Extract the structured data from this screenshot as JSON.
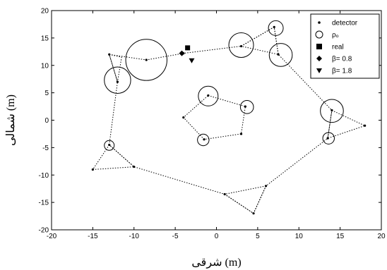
{
  "chart_data": {
    "type": "scatter",
    "xlabel": "شرقی (m)",
    "ylabel": "شمالی (m)",
    "xlim": [
      -20,
      20
    ],
    "ylim": [
      -20,
      20
    ],
    "xticks": [
      -20,
      -15,
      -10,
      -5,
      0,
      5,
      10,
      15,
      20
    ],
    "yticks": [
      -20,
      -15,
      -10,
      -5,
      0,
      5,
      10,
      15,
      20
    ],
    "xtick_labels": [
      "-20",
      "-15",
      "-10",
      "-5",
      "0",
      "5",
      "10",
      "15",
      "20"
    ],
    "ytick_labels": [
      "-20",
      "-15",
      "-10",
      "-5",
      "0",
      "5",
      "10",
      "15",
      "20"
    ],
    "grid": false,
    "legend_position": "top-right",
    "legend": [
      {
        "label": "detector",
        "marker": "dot"
      },
      {
        "label": "ρₒ",
        "marker": "open-circle"
      },
      {
        "label": "real",
        "marker": "square"
      },
      {
        "label": "β= 0.8",
        "marker": "diamond"
      },
      {
        "label": "β= 1.8",
        "marker": "triangle-down"
      }
    ],
    "series": [
      {
        "name": "detector",
        "points": [
          {
            "x": -13,
            "y": 12
          },
          {
            "x": -12,
            "y": 7
          },
          {
            "x": -8.5,
            "y": 11
          },
          {
            "x": -4,
            "y": 12.2
          },
          {
            "x": 3,
            "y": 13.5
          },
          {
            "x": 7,
            "y": 17
          },
          {
            "x": 7.5,
            "y": 12
          },
          {
            "x": 14,
            "y": 1.8
          },
          {
            "x": 18,
            "y": -1
          },
          {
            "x": 13.5,
            "y": -3.3
          },
          {
            "x": 6,
            "y": -12
          },
          {
            "x": 4.5,
            "y": -17
          },
          {
            "x": 1,
            "y": -13.5
          },
          {
            "x": -10,
            "y": -8.5
          },
          {
            "x": -15,
            "y": -9
          },
          {
            "x": -13,
            "y": -4.5
          },
          {
            "x": -1,
            "y": 4.5
          },
          {
            "x": 3.5,
            "y": 2.5
          },
          {
            "x": 3,
            "y": -2.5
          },
          {
            "x": -1.5,
            "y": -3.5
          },
          {
            "x": -4,
            "y": 0.5
          }
        ]
      },
      {
        "name": "ρₒ",
        "points": [
          {
            "x": -8.5,
            "y": 11,
            "r": 2.5
          },
          {
            "x": -12,
            "y": 7.3,
            "r": 1.6
          },
          {
            "x": 3,
            "y": 13.7,
            "r": 1.5
          },
          {
            "x": 7.2,
            "y": 16.8,
            "r": 0.9
          },
          {
            "x": 7.8,
            "y": 11.9,
            "r": 1.4
          },
          {
            "x": 14,
            "y": 1.7,
            "r": 1.4
          },
          {
            "x": 13.6,
            "y": -3.3,
            "r": 0.7
          },
          {
            "x": -13,
            "y": -4.6,
            "r": 0.6
          },
          {
            "x": -1,
            "y": 4.4,
            "r": 1.2
          },
          {
            "x": 3.7,
            "y": 2.4,
            "r": 0.8
          },
          {
            "x": -1.6,
            "y": -3.6,
            "r": 0.7
          }
        ]
      },
      {
        "name": "real",
        "points": [
          {
            "x": -3.5,
            "y": 13.2
          }
        ]
      },
      {
        "name": "β= 0.8",
        "points": [
          {
            "x": -4.2,
            "y": 12.2
          }
        ]
      },
      {
        "name": "β= 1.8",
        "points": [
          {
            "x": -3,
            "y": 10.9
          }
        ]
      }
    ],
    "outline_polylines": [
      [
        [
          -13,
          12
        ],
        [
          -8.5,
          11
        ],
        [
          -4,
          12.2
        ],
        [
          3,
          13.5
        ],
        [
          7,
          17
        ],
        [
          7.5,
          12
        ],
        [
          14,
          1.8
        ],
        [
          13.5,
          -3.3
        ],
        [
          6,
          -12
        ],
        [
          4.5,
          -17
        ],
        [
          1,
          -13.5
        ],
        [
          -10,
          -8.5
        ],
        [
          -13,
          -4.5
        ],
        [
          -12,
          7
        ],
        [
          -13,
          12
        ]
      ],
      [
        [
          -1,
          4.5
        ],
        [
          3.5,
          2.5
        ],
        [
          3,
          -2.5
        ],
        [
          -1.5,
          -3.5
        ],
        [
          -4,
          0.5
        ],
        [
          -1,
          4.5
        ]
      ]
    ],
    "triangles": [
      [
        [
          -13,
          12
        ],
        [
          -11.5,
          11.5
        ],
        [
          -12,
          7
        ]
      ],
      [
        [
          3,
          13.5
        ],
        [
          7,
          17
        ],
        [
          7.5,
          12
        ]
      ],
      [
        [
          14,
          1.8
        ],
        [
          18,
          -1
        ],
        [
          13.5,
          -3.3
        ]
      ],
      [
        [
          -13,
          -4.5
        ],
        [
          -15,
          -9
        ],
        [
          -10,
          -8.5
        ]
      ],
      [
        [
          6,
          -12
        ],
        [
          1,
          -13.5
        ],
        [
          4.5,
          -17
        ]
      ]
    ]
  }
}
